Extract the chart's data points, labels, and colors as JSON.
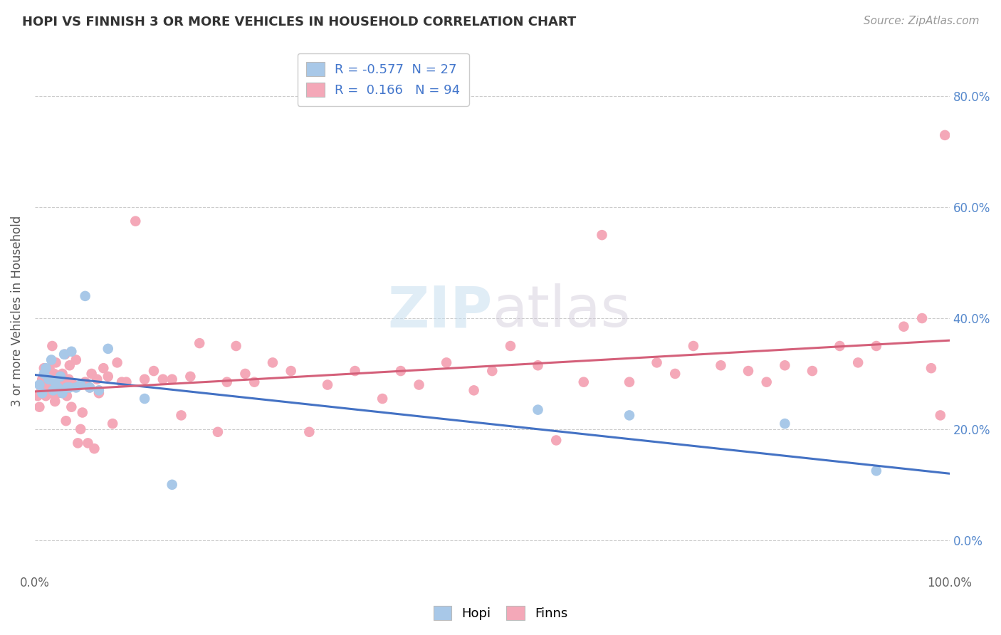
{
  "title": "HOPI VS FINNISH 3 OR MORE VEHICLES IN HOUSEHOLD CORRELATION CHART",
  "source": "Source: ZipAtlas.com",
  "ylabel": "3 or more Vehicles in Household",
  "xlim": [
    0.0,
    1.0
  ],
  "ylim": [
    -0.055,
    0.88
  ],
  "yticks": [
    0.0,
    0.2,
    0.4,
    0.6,
    0.8
  ],
  "hopi_R": -0.577,
  "hopi_N": 27,
  "finns_R": 0.166,
  "finns_N": 94,
  "hopi_color": "#a8c8e8",
  "finns_color": "#f4a8b8",
  "hopi_line_color": "#4472c4",
  "finns_line_color": "#d4607a",
  "background_color": "#ffffff",
  "hopi_x": [
    0.005,
    0.008,
    0.01,
    0.012,
    0.015,
    0.018,
    0.02,
    0.022,
    0.025,
    0.028,
    0.03,
    0.032,
    0.035,
    0.038,
    0.04,
    0.045,
    0.05,
    0.055,
    0.06,
    0.07,
    0.08,
    0.12,
    0.15,
    0.55,
    0.65,
    0.82,
    0.92
  ],
  "hopi_y": [
    0.28,
    0.265,
    0.3,
    0.31,
    0.29,
    0.325,
    0.27,
    0.285,
    0.275,
    0.295,
    0.265,
    0.335,
    0.275,
    0.275,
    0.34,
    0.275,
    0.28,
    0.44,
    0.275,
    0.27,
    0.345,
    0.255,
    0.1,
    0.235,
    0.225,
    0.21,
    0.125
  ],
  "finns_x": [
    0.003,
    0.005,
    0.007,
    0.008,
    0.01,
    0.011,
    0.012,
    0.013,
    0.015,
    0.016,
    0.017,
    0.018,
    0.019,
    0.02,
    0.021,
    0.022,
    0.023,
    0.025,
    0.026,
    0.027,
    0.028,
    0.03,
    0.031,
    0.032,
    0.033,
    0.034,
    0.035,
    0.037,
    0.038,
    0.04,
    0.042,
    0.045,
    0.047,
    0.05,
    0.052,
    0.055,
    0.058,
    0.06,
    0.062,
    0.065,
    0.068,
    0.07,
    0.075,
    0.08,
    0.085,
    0.09,
    0.095,
    0.1,
    0.11,
    0.12,
    0.13,
    0.14,
    0.15,
    0.16,
    0.17,
    0.18,
    0.2,
    0.21,
    0.22,
    0.23,
    0.24,
    0.26,
    0.28,
    0.3,
    0.32,
    0.35,
    0.38,
    0.4,
    0.42,
    0.45,
    0.48,
    0.5,
    0.52,
    0.55,
    0.57,
    0.6,
    0.62,
    0.65,
    0.68,
    0.7,
    0.72,
    0.75,
    0.78,
    0.8,
    0.82,
    0.85,
    0.88,
    0.9,
    0.92,
    0.95,
    0.97,
    0.98,
    0.99,
    0.995
  ],
  "finns_y": [
    0.26,
    0.24,
    0.27,
    0.29,
    0.31,
    0.28,
    0.26,
    0.295,
    0.275,
    0.31,
    0.285,
    0.265,
    0.35,
    0.28,
    0.3,
    0.25,
    0.32,
    0.285,
    0.265,
    0.275,
    0.295,
    0.3,
    0.285,
    0.275,
    0.335,
    0.215,
    0.26,
    0.29,
    0.315,
    0.24,
    0.28,
    0.325,
    0.175,
    0.2,
    0.23,
    0.285,
    0.175,
    0.275,
    0.3,
    0.165,
    0.29,
    0.265,
    0.31,
    0.295,
    0.21,
    0.32,
    0.285,
    0.285,
    0.575,
    0.29,
    0.305,
    0.29,
    0.29,
    0.225,
    0.295,
    0.355,
    0.195,
    0.285,
    0.35,
    0.3,
    0.285,
    0.32,
    0.305,
    0.195,
    0.28,
    0.305,
    0.255,
    0.305,
    0.28,
    0.32,
    0.27,
    0.305,
    0.35,
    0.315,
    0.18,
    0.285,
    0.55,
    0.285,
    0.32,
    0.3,
    0.35,
    0.315,
    0.305,
    0.285,
    0.315,
    0.305,
    0.35,
    0.32,
    0.35,
    0.385,
    0.4,
    0.31,
    0.225,
    0.73
  ],
  "hopi_line_x0": 0.0,
  "hopi_line_y0": 0.298,
  "hopi_line_x1": 1.0,
  "hopi_line_y1": 0.12,
  "finns_line_x0": 0.0,
  "finns_line_y0": 0.268,
  "finns_line_x1": 1.0,
  "finns_line_y1": 0.36
}
